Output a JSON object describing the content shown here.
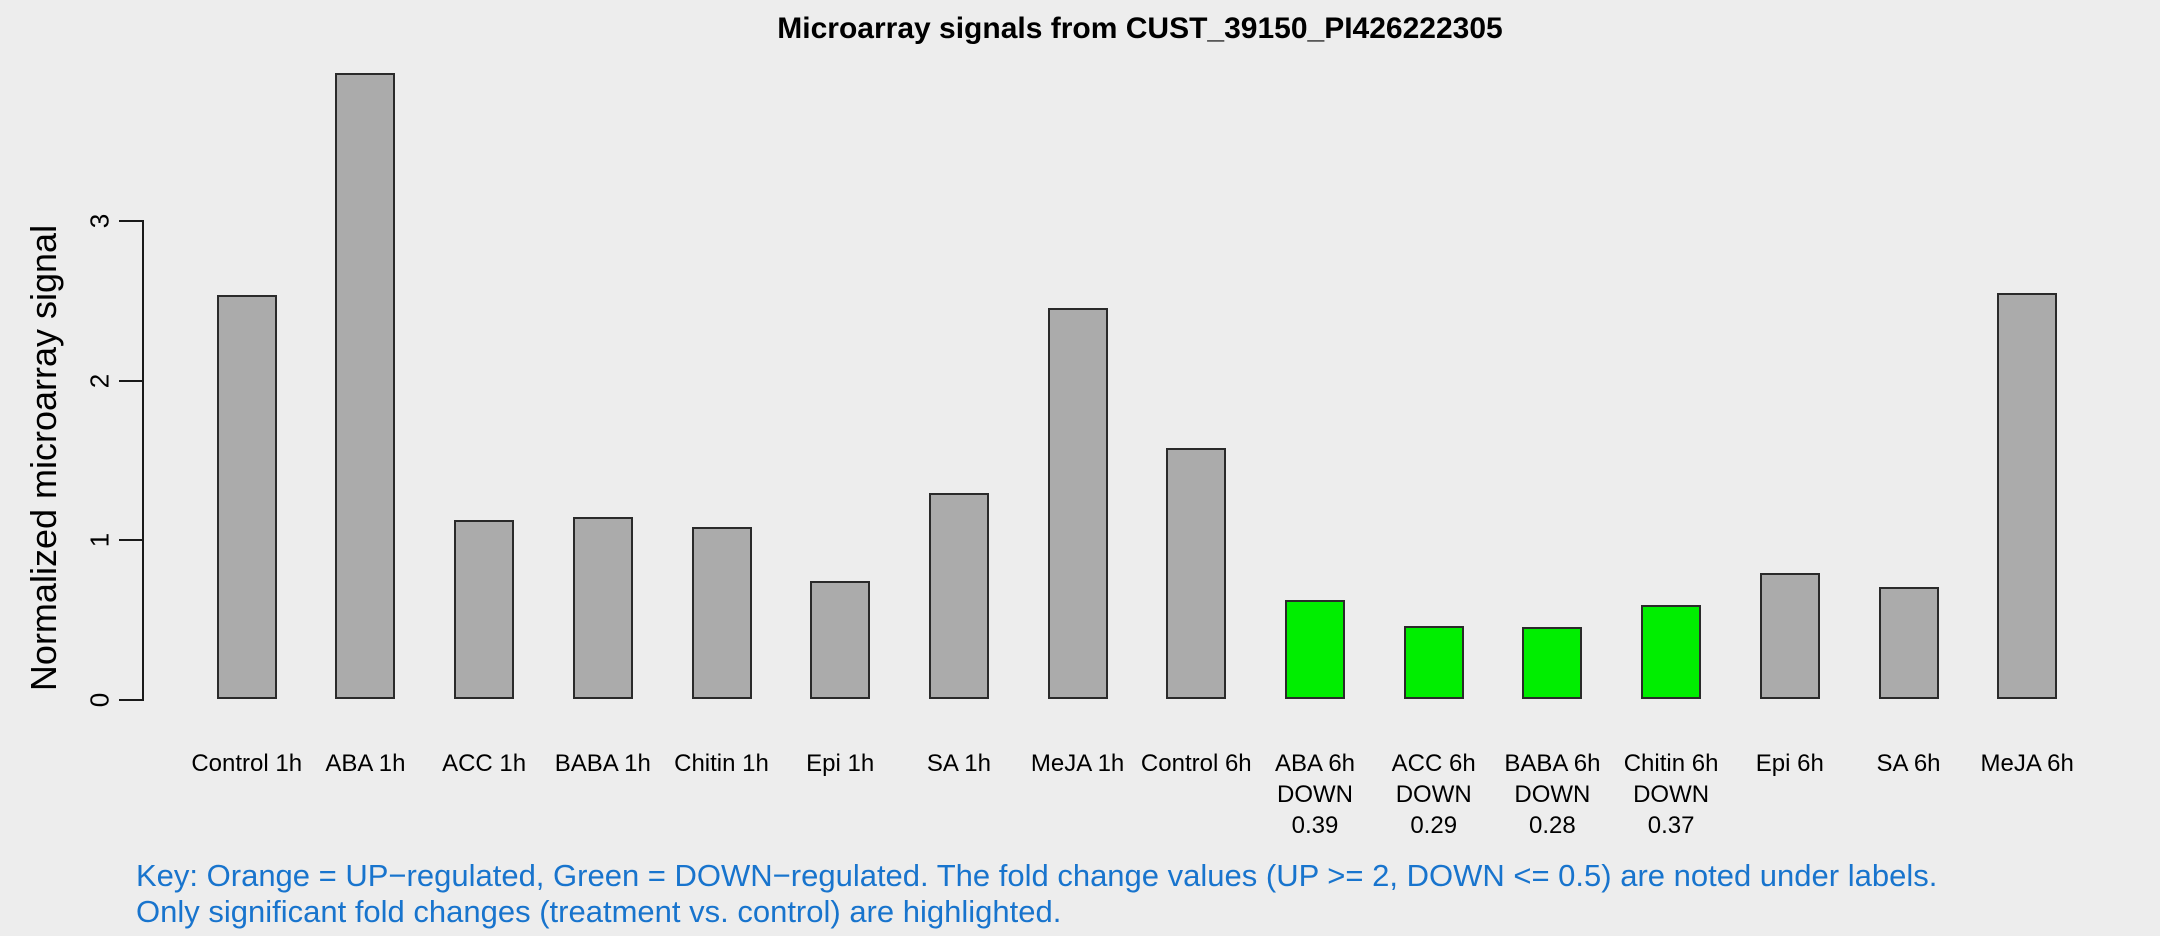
{
  "title": "Microarray signals from CUST_39150_PI426222305",
  "y_axis": {
    "label": "Normalized microarray signal",
    "ticks": [
      "0",
      "1",
      "2",
      "3"
    ]
  },
  "key_note": {
    "line1": "Key: Orange = UP−regulated, Green = DOWN−regulated. The fold change values (UP >= 2, DOWN <= 0.5) are noted under labels.",
    "line2": "Only significant fold changes (treatment vs. control) are highlighted."
  },
  "colors": {
    "background": "#EDEDED",
    "bar_default": "#ABABAB",
    "bar_down_highlight": "#00EE00",
    "bar_border": "#2A2A2A",
    "axis": "#1A1A1A",
    "key_text": "#1874CD",
    "label_text": "#000000"
  },
  "chart_data": {
    "type": "bar",
    "title": "Microarray signals from CUST_39150_PI426222305",
    "xlabel": "",
    "ylabel": "Normalized microarray signal",
    "ylim": [
      0,
      3.95
    ],
    "yticks": [
      0,
      1,
      2,
      3
    ],
    "grid": false,
    "legend_position": "none",
    "categories": [
      "Control 1h",
      "ABA 1h",
      "ACC 1h",
      "BABA 1h",
      "Chitin 1h",
      "Epi 1h",
      "SA 1h",
      "MeJA 1h",
      "Control 6h",
      "ABA 6h",
      "ACC 6h",
      "BABA 6h",
      "Chitin 6h",
      "Epi 6h",
      "SA 6h",
      "MeJA 6h"
    ],
    "values": [
      2.53,
      3.92,
      1.12,
      1.14,
      1.08,
      0.74,
      1.29,
      2.45,
      1.57,
      0.62,
      0.46,
      0.45,
      0.59,
      0.79,
      0.7,
      2.54
    ],
    "bars": [
      {
        "label": "Control 1h",
        "value": 2.53,
        "color": "#ABABAB",
        "note_lines": []
      },
      {
        "label": "ABA 1h",
        "value": 3.92,
        "color": "#ABABAB",
        "note_lines": []
      },
      {
        "label": "ACC 1h",
        "value": 1.12,
        "color": "#ABABAB",
        "note_lines": []
      },
      {
        "label": "BABA 1h",
        "value": 1.14,
        "color": "#ABABAB",
        "note_lines": []
      },
      {
        "label": "Chitin 1h",
        "value": 1.08,
        "color": "#ABABAB",
        "note_lines": []
      },
      {
        "label": "Epi 1h",
        "value": 0.74,
        "color": "#ABABAB",
        "note_lines": []
      },
      {
        "label": "SA 1h",
        "value": 1.29,
        "color": "#ABABAB",
        "note_lines": []
      },
      {
        "label": "MeJA 1h",
        "value": 2.45,
        "color": "#ABABAB",
        "note_lines": []
      },
      {
        "label": "Control 6h",
        "value": 1.57,
        "color": "#ABABAB",
        "note_lines": []
      },
      {
        "label": "ABA 6h",
        "value": 0.62,
        "color": "#00EE00",
        "note_lines": [
          "DOWN",
          "0.39"
        ]
      },
      {
        "label": "ACC 6h",
        "value": 0.46,
        "color": "#00EE00",
        "note_lines": [
          "DOWN",
          "0.29"
        ]
      },
      {
        "label": "BABA 6h",
        "value": 0.45,
        "color": "#00EE00",
        "note_lines": [
          "DOWN",
          "0.28"
        ]
      },
      {
        "label": "Chitin 6h",
        "value": 0.59,
        "color": "#00EE00",
        "note_lines": [
          "DOWN",
          "0.37"
        ]
      },
      {
        "label": "Epi 6h",
        "value": 0.79,
        "color": "#ABABAB",
        "note_lines": []
      },
      {
        "label": "SA 6h",
        "value": 0.7,
        "color": "#ABABAB",
        "note_lines": []
      },
      {
        "label": "MeJA 6h",
        "value": 2.54,
        "color": "#ABABAB",
        "note_lines": []
      }
    ]
  }
}
